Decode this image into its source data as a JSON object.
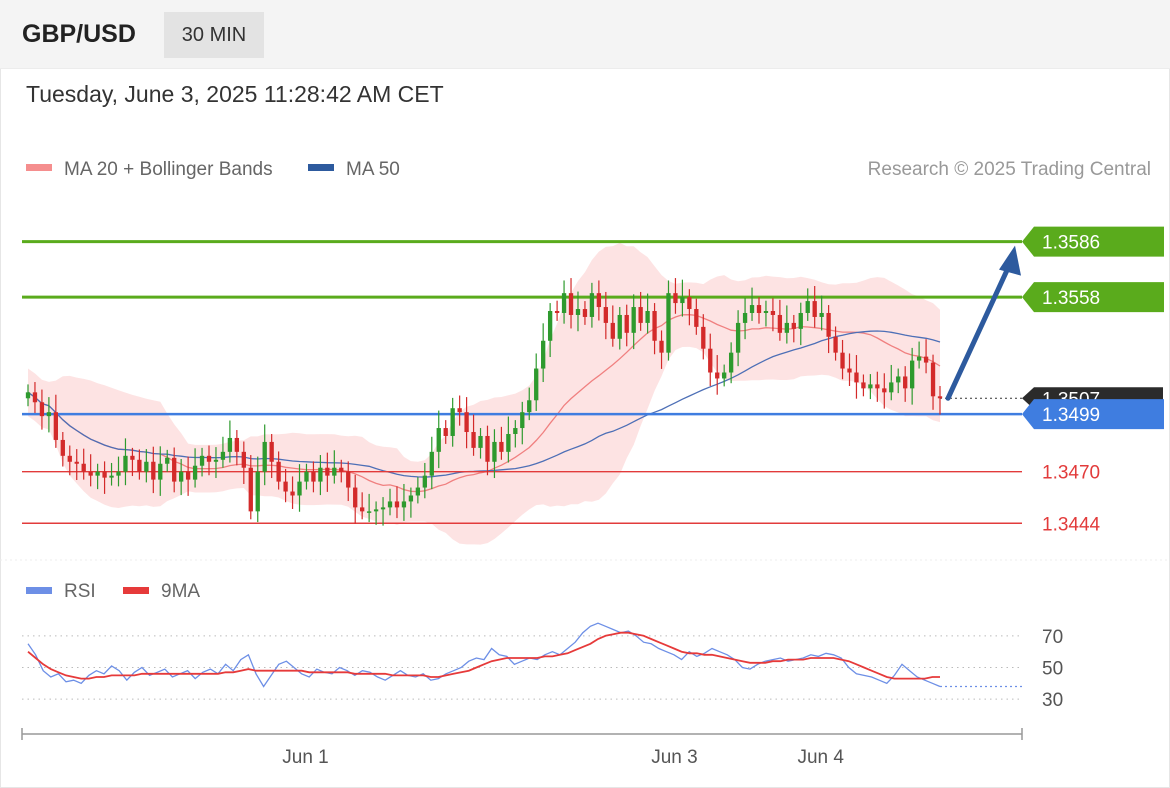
{
  "header": {
    "pair": "GBP/USD",
    "timeframe": "30 MIN",
    "datetime": "Tuesday, June 3, 2025 11:28:42 AM CET"
  },
  "legend": {
    "ma20": "MA 20 + Bollinger Bands",
    "ma50": "MA 50",
    "credit": "Research © 2025 Trading Central"
  },
  "rsi_legend": {
    "rsi": "RSI",
    "ma9": "9MA"
  },
  "colors": {
    "resistance": "#5aab1c",
    "support": "#e23b3b",
    "pivot": "#3f7de0",
    "current": "#2b2b2b",
    "candle_up": "#2e9a2e",
    "candle_down": "#d32a2a",
    "bollinger": "#fcd9d9",
    "ma20": "#f08080",
    "ma50": "#4d6fb6",
    "arrow": "#2d5a9e",
    "rsi": "#6d8fe6",
    "rsi_ma": "#e63a3a"
  },
  "chart_data": [
    {
      "type": "candlestick",
      "title": "GBP/USD",
      "ylim": [
        1.3428,
        1.3612
      ],
      "levels": [
        {
          "value": 1.3586,
          "label": "1.3586",
          "kind": "resistance"
        },
        {
          "value": 1.3558,
          "label": "1.3558",
          "kind": "resistance"
        },
        {
          "value": 1.3507,
          "label": "1.3507",
          "kind": "current"
        },
        {
          "value": 1.3499,
          "label": "1.3499",
          "kind": "pivot"
        },
        {
          "value": 1.347,
          "label": "1.3470",
          "kind": "support"
        },
        {
          "value": 1.3444,
          "label": "1.3444",
          "kind": "support"
        }
      ],
      "close": [
        1.351,
        1.3505,
        1.3498,
        1.35,
        1.3486,
        1.3478,
        1.3475,
        1.3474,
        1.347,
        1.3468,
        1.347,
        1.3467,
        1.3468,
        1.347,
        1.3478,
        1.3476,
        1.347,
        1.3475,
        1.3466,
        1.3474,
        1.3477,
        1.3465,
        1.347,
        1.3466,
        1.3473,
        1.3478,
        1.3475,
        1.3476,
        1.348,
        1.3487,
        1.348,
        1.3472,
        1.345,
        1.347,
        1.3485,
        1.3475,
        1.3465,
        1.346,
        1.3458,
        1.3465,
        1.347,
        1.3465,
        1.3472,
        1.3468,
        1.3472,
        1.347,
        1.3462,
        1.3452,
        1.345,
        1.345,
        1.3451,
        1.3452,
        1.3455,
        1.3452,
        1.3455,
        1.3458,
        1.3462,
        1.3468,
        1.348,
        1.3492,
        1.3488,
        1.3502,
        1.35,
        1.349,
        1.3482,
        1.3488,
        1.3475,
        1.3485,
        1.348,
        1.3489,
        1.3492,
        1.35,
        1.3506,
        1.3522,
        1.3536,
        1.3551,
        1.355,
        1.356,
        1.3549,
        1.3552,
        1.3548,
        1.356,
        1.3553,
        1.3545,
        1.3537,
        1.3549,
        1.354,
        1.3553,
        1.3545,
        1.3551,
        1.3536,
        1.353,
        1.356,
        1.3555,
        1.3558,
        1.3552,
        1.3543,
        1.3532,
        1.352,
        1.3517,
        1.352,
        1.353,
        1.3545,
        1.355,
        1.3554,
        1.355,
        1.3551,
        1.3549,
        1.354,
        1.3545,
        1.3542,
        1.355,
        1.3556,
        1.3548,
        1.355,
        1.3538,
        1.353,
        1.3522,
        1.352,
        1.3515,
        1.3512,
        1.3514,
        1.3512,
        1.351,
        1.3515,
        1.3518,
        1.3512,
        1.3526,
        1.3528,
        1.3525,
        1.3508,
        1.3507
      ],
      "x_ticks": [
        {
          "label": "Jun 1",
          "index": 39
        },
        {
          "label": "Jun 3",
          "index": 92
        },
        {
          "label": "Jun 4",
          "index": 113
        }
      ]
    },
    {
      "type": "line",
      "title": "RSI",
      "ylim": [
        20,
        80
      ],
      "y_ticks": [
        70,
        50,
        30
      ],
      "series": [
        {
          "name": "RSI",
          "values": [
            65,
            58,
            48,
            44,
            46,
            41,
            42,
            40,
            45,
            48,
            46,
            51,
            48,
            42,
            47,
            50,
            45,
            47,
            49,
            44,
            46,
            48,
            43,
            47,
            49,
            46,
            52,
            48,
            55,
            58,
            46,
            38,
            45,
            52,
            54,
            50,
            46,
            44,
            49,
            47,
            46,
            50,
            48,
            45,
            48,
            47,
            44,
            42,
            45,
            48,
            45,
            44,
            46,
            42,
            43,
            46,
            48,
            50,
            54,
            56,
            55,
            62,
            58,
            57,
            52,
            54,
            56,
            55,
            58,
            60,
            58,
            62,
            66,
            72,
            76,
            78,
            76,
            74,
            72,
            73,
            70,
            66,
            65,
            62,
            60,
            58,
            55,
            60,
            57,
            59,
            62,
            60,
            58,
            55,
            50,
            49,
            52,
            54,
            55,
            56,
            54,
            55,
            56,
            58,
            57,
            59,
            58,
            56,
            50,
            46,
            45,
            44,
            42,
            40,
            45,
            52,
            48,
            44,
            42,
            40,
            38
          ]
        },
        {
          "name": "9MA",
          "values": [
            60,
            56,
            52,
            49,
            47,
            45,
            44,
            43,
            43,
            44,
            44,
            45,
            45,
            45,
            45,
            46,
            46,
            46,
            46,
            46,
            46,
            46,
            46,
            46,
            46,
            46,
            47,
            47,
            48,
            49,
            48,
            48,
            48,
            48,
            48,
            48,
            48,
            47,
            47,
            47,
            47,
            47,
            47,
            46,
            46,
            46,
            46,
            46,
            45,
            45,
            45,
            45,
            45,
            44,
            44,
            45,
            46,
            47,
            48,
            50,
            52,
            54,
            55,
            56,
            56,
            56,
            56,
            56,
            57,
            57,
            58,
            59,
            61,
            63,
            65,
            68,
            70,
            71,
            72,
            72,
            71,
            70,
            68,
            66,
            64,
            62,
            60,
            59,
            59,
            58,
            58,
            57,
            56,
            55,
            54,
            53,
            53,
            53,
            54,
            54,
            55,
            55,
            55,
            56,
            56,
            56,
            56,
            55,
            54,
            52,
            50,
            48,
            46,
            44,
            43,
            43,
            43,
            43,
            43,
            44,
            44
          ]
        }
      ]
    }
  ]
}
